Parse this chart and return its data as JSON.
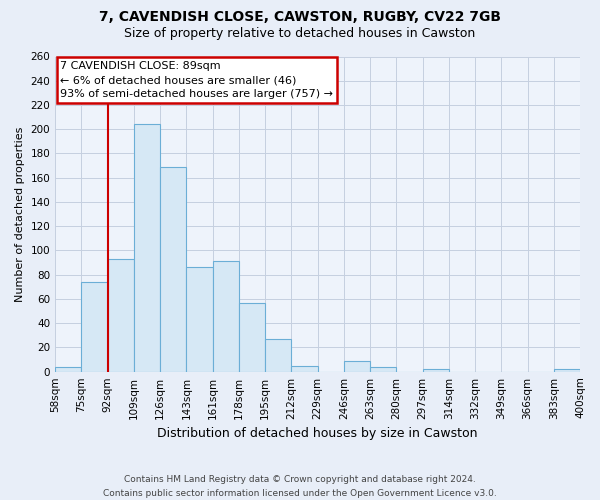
{
  "title": "7, CAVENDISH CLOSE, CAWSTON, RUGBY, CV22 7GB",
  "subtitle": "Size of property relative to detached houses in Cawston",
  "xlabel": "Distribution of detached houses by size in Cawston",
  "ylabel": "Number of detached properties",
  "bin_labels": [
    "58sqm",
    "75sqm",
    "92sqm",
    "109sqm",
    "126sqm",
    "143sqm",
    "161sqm",
    "178sqm",
    "195sqm",
    "212sqm",
    "229sqm",
    "246sqm",
    "263sqm",
    "280sqm",
    "297sqm",
    "314sqm",
    "332sqm",
    "349sqm",
    "366sqm",
    "383sqm",
    "400sqm"
  ],
  "bar_heights": [
    4,
    74,
    93,
    204,
    169,
    86,
    91,
    57,
    27,
    5,
    0,
    9,
    4,
    0,
    2,
    0,
    0,
    0,
    0,
    2
  ],
  "bar_color": "#d6e8f5",
  "bar_edge_color": "#6baed6",
  "property_line_x": 2.0,
  "property_line_color": "#cc0000",
  "annotation_title": "7 CAVENDISH CLOSE: 89sqm",
  "annotation_line1": "← 6% of detached houses are smaller (46)",
  "annotation_line2": "93% of semi-detached houses are larger (757) →",
  "annotation_box_color": "#ffffff",
  "annotation_box_edge_color": "#cc0000",
  "ylim": [
    0,
    260
  ],
  "yticks": [
    0,
    20,
    40,
    60,
    80,
    100,
    120,
    140,
    160,
    180,
    200,
    220,
    240,
    260
  ],
  "footnote1": "Contains HM Land Registry data © Crown copyright and database right 2024.",
  "footnote2": "Contains public sector information licensed under the Open Government Licence v3.0.",
  "bg_color": "#e8eef8",
  "plot_bg_color": "#eef3fb",
  "grid_color": "#c5cfe0",
  "title_fontsize": 10,
  "subtitle_fontsize": 9,
  "xlabel_fontsize": 9,
  "ylabel_fontsize": 8,
  "tick_fontsize": 7.5,
  "footnote_fontsize": 6.5,
  "annotation_fontsize": 8
}
